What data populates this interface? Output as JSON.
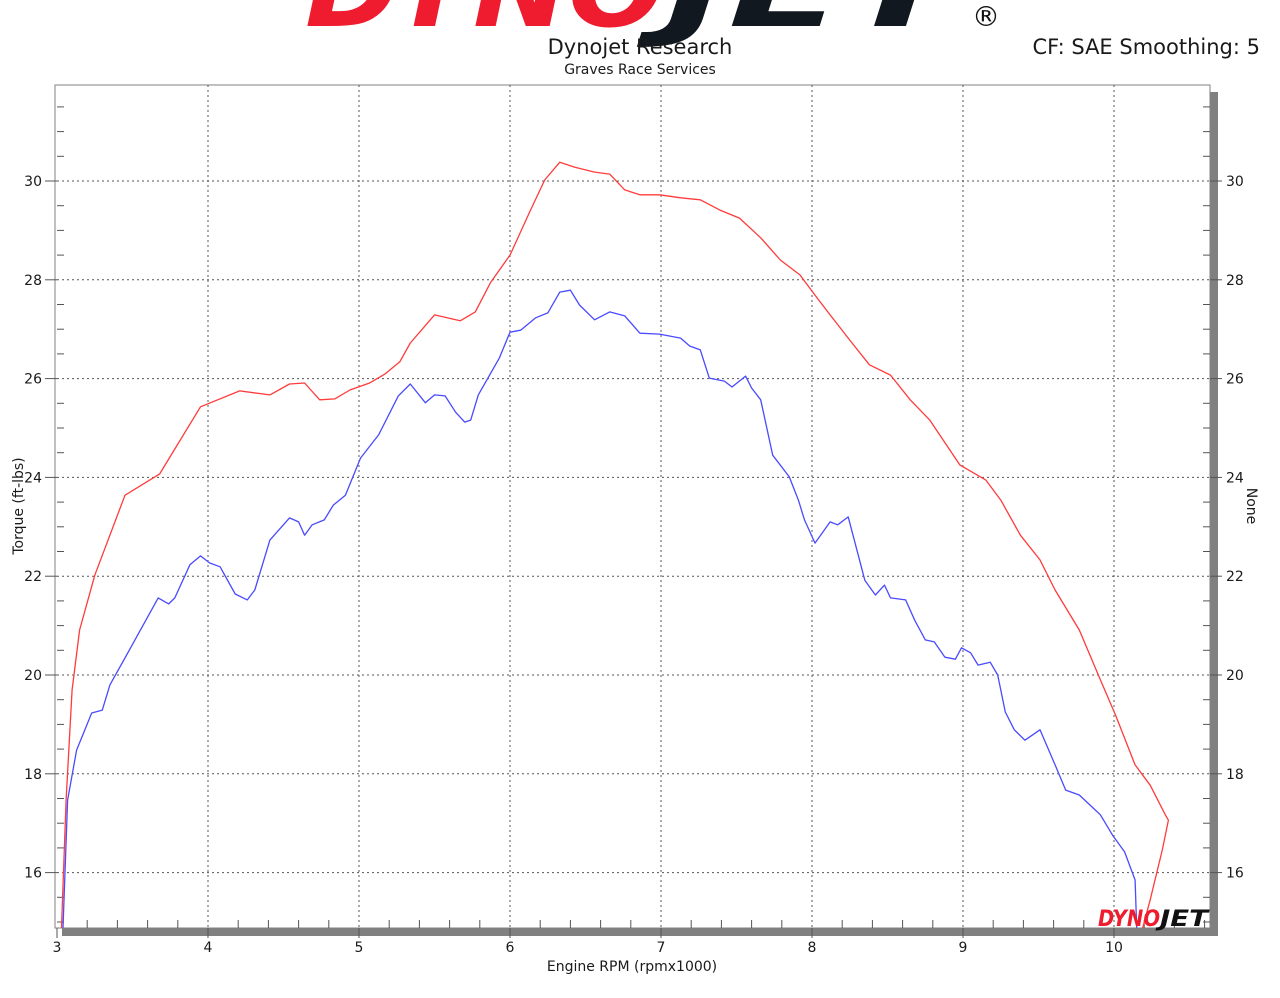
{
  "header": {
    "logo_text_red": "DYNO",
    "logo_text_black": "JET",
    "logo_registered": "®",
    "title": "Dynojet Research",
    "subtitle": "Graves Race Services",
    "settings": "CF: SAE Smoothing: 5"
  },
  "watermark": {
    "red": "DYNO",
    "black": "JET"
  },
  "chart_data": {
    "type": "line",
    "title": "Dynojet Research",
    "subtitle": "Graves Race Services",
    "xlabel": "Engine RPM (rpmx1000)",
    "ylabel": "Torque (ft-lbs)",
    "y2label": "None",
    "xlim": [
      3,
      10.64
    ],
    "ylim": [
      14.88,
      31.95
    ],
    "xticks": [
      "3",
      "4",
      "5",
      "6",
      "7",
      "8",
      "9",
      "10"
    ],
    "yticks": [
      "16",
      "18",
      "20",
      "22",
      "24",
      "26",
      "28",
      "30"
    ],
    "grid": true,
    "colors": {
      "red": "#ff3b3b",
      "blue": "#4a4aff",
      "frame": "#808080"
    },
    "series": [
      {
        "color": "#ff3b3b",
        "points": [
          [
            3.03,
            14.88
          ],
          [
            3.06,
            17.47
          ],
          [
            3.1,
            19.7
          ],
          [
            3.15,
            20.91
          ],
          [
            3.25,
            22.02
          ],
          [
            3.45,
            23.64
          ],
          [
            3.68,
            24.07
          ],
          [
            3.95,
            25.43
          ],
          [
            4.21,
            25.75
          ],
          [
            4.41,
            25.67
          ],
          [
            4.54,
            25.89
          ],
          [
            4.64,
            25.91
          ],
          [
            4.74,
            25.57
          ],
          [
            4.84,
            25.59
          ],
          [
            4.94,
            25.77
          ],
          [
            5.07,
            25.91
          ],
          [
            5.17,
            26.09
          ],
          [
            5.27,
            26.34
          ],
          [
            5.34,
            26.72
          ],
          [
            5.5,
            27.29
          ],
          [
            5.67,
            27.17
          ],
          [
            5.77,
            27.35
          ],
          [
            5.87,
            27.94
          ],
          [
            6.0,
            28.5
          ],
          [
            6.13,
            29.37
          ],
          [
            6.23,
            30.02
          ],
          [
            6.33,
            30.38
          ],
          [
            6.43,
            30.28
          ],
          [
            6.56,
            30.18
          ],
          [
            6.66,
            30.14
          ],
          [
            6.76,
            29.82
          ],
          [
            6.86,
            29.72
          ],
          [
            6.99,
            29.72
          ],
          [
            7.13,
            29.66
          ],
          [
            7.26,
            29.62
          ],
          [
            7.39,
            29.41
          ],
          [
            7.52,
            29.25
          ],
          [
            7.66,
            28.85
          ],
          [
            7.79,
            28.4
          ],
          [
            7.92,
            28.1
          ],
          [
            8.02,
            27.69
          ],
          [
            8.12,
            27.29
          ],
          [
            8.25,
            26.78
          ],
          [
            8.38,
            26.28
          ],
          [
            8.52,
            26.07
          ],
          [
            8.65,
            25.57
          ],
          [
            8.78,
            25.16
          ],
          [
            8.98,
            24.25
          ],
          [
            9.15,
            23.95
          ],
          [
            9.25,
            23.54
          ],
          [
            9.38,
            22.83
          ],
          [
            9.51,
            22.33
          ],
          [
            9.61,
            21.72
          ],
          [
            9.77,
            20.91
          ],
          [
            9.91,
            19.9
          ],
          [
            10.01,
            19.19
          ],
          [
            10.14,
            18.18
          ],
          [
            10.24,
            17.77
          ],
          [
            10.34,
            17.17
          ],
          [
            10.36,
            17.06
          ],
          [
            10.32,
            16.46
          ],
          [
            10.24,
            15.45
          ],
          [
            10.19,
            14.88
          ]
        ]
      },
      {
        "color": "#4a4aff",
        "points": [
          [
            3.04,
            14.88
          ],
          [
            3.07,
            17.47
          ],
          [
            3.13,
            18.48
          ],
          [
            3.23,
            19.23
          ],
          [
            3.3,
            19.29
          ],
          [
            3.35,
            19.8
          ],
          [
            3.48,
            20.51
          ],
          [
            3.67,
            21.56
          ],
          [
            3.74,
            21.44
          ],
          [
            3.78,
            21.56
          ],
          [
            3.88,
            22.23
          ],
          [
            3.95,
            22.41
          ],
          [
            4.01,
            22.27
          ],
          [
            4.08,
            22.19
          ],
          [
            4.18,
            21.64
          ],
          [
            4.26,
            21.52
          ],
          [
            4.31,
            21.72
          ],
          [
            4.41,
            22.73
          ],
          [
            4.54,
            23.18
          ],
          [
            4.6,
            23.1
          ],
          [
            4.64,
            22.83
          ],
          [
            4.69,
            23.04
          ],
          [
            4.77,
            23.14
          ],
          [
            4.83,
            23.44
          ],
          [
            4.91,
            23.64
          ],
          [
            5.01,
            24.39
          ],
          [
            5.13,
            24.86
          ],
          [
            5.26,
            25.65
          ],
          [
            5.34,
            25.89
          ],
          [
            5.44,
            25.51
          ],
          [
            5.5,
            25.67
          ],
          [
            5.57,
            25.65
          ],
          [
            5.64,
            25.32
          ],
          [
            5.7,
            25.12
          ],
          [
            5.74,
            25.16
          ],
          [
            5.79,
            25.67
          ],
          [
            5.93,
            26.42
          ],
          [
            6.0,
            26.94
          ],
          [
            6.07,
            26.98
          ],
          [
            6.17,
            27.23
          ],
          [
            6.25,
            27.33
          ],
          [
            6.33,
            27.75
          ],
          [
            6.4,
            27.79
          ],
          [
            6.46,
            27.49
          ],
          [
            6.56,
            27.19
          ],
          [
            6.66,
            27.35
          ],
          [
            6.76,
            27.27
          ],
          [
            6.86,
            26.92
          ],
          [
            6.99,
            26.9
          ],
          [
            7.13,
            26.82
          ],
          [
            7.19,
            26.66
          ],
          [
            7.26,
            26.58
          ],
          [
            7.32,
            26.01
          ],
          [
            7.42,
            25.95
          ],
          [
            7.47,
            25.83
          ],
          [
            7.56,
            26.05
          ],
          [
            7.6,
            25.81
          ],
          [
            7.66,
            25.57
          ],
          [
            7.74,
            24.45
          ],
          [
            7.85,
            24.01
          ],
          [
            7.91,
            23.54
          ],
          [
            7.95,
            23.14
          ],
          [
            8.02,
            22.67
          ],
          [
            8.12,
            23.1
          ],
          [
            8.17,
            23.04
          ],
          [
            8.24,
            23.2
          ],
          [
            8.28,
            22.73
          ],
          [
            8.35,
            21.92
          ],
          [
            8.42,
            21.62
          ],
          [
            8.48,
            21.82
          ],
          [
            8.52,
            21.56
          ],
          [
            8.62,
            21.52
          ],
          [
            8.68,
            21.11
          ],
          [
            8.75,
            20.71
          ],
          [
            8.81,
            20.67
          ],
          [
            8.88,
            20.36
          ],
          [
            8.95,
            20.32
          ],
          [
            8.99,
            20.55
          ],
          [
            9.05,
            20.45
          ],
          [
            9.1,
            20.2
          ],
          [
            9.18,
            20.26
          ],
          [
            9.23,
            20.0
          ],
          [
            9.28,
            19.25
          ],
          [
            9.34,
            18.89
          ],
          [
            9.41,
            18.68
          ],
          [
            9.51,
            18.89
          ],
          [
            9.61,
            18.18
          ],
          [
            9.68,
            17.67
          ],
          [
            9.77,
            17.57
          ],
          [
            9.84,
            17.37
          ],
          [
            9.91,
            17.17
          ],
          [
            9.99,
            16.76
          ],
          [
            10.07,
            16.42
          ],
          [
            10.14,
            15.85
          ],
          [
            10.15,
            14.88
          ]
        ]
      }
    ]
  }
}
